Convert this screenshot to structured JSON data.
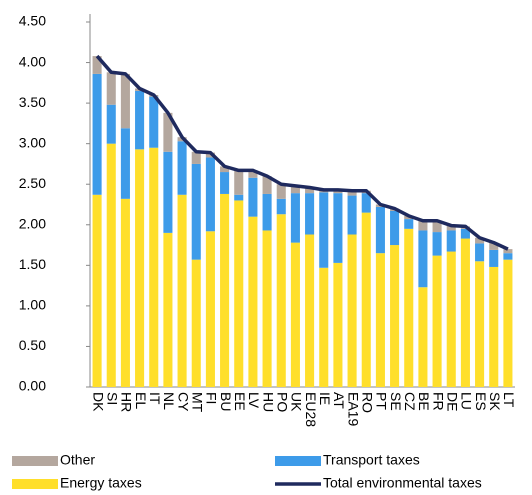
{
  "chart_data": {
    "type": "bar",
    "stacked": true,
    "categories": [
      "DK",
      "SI",
      "HR",
      "EL",
      "IT",
      "NL",
      "CY",
      "MT",
      "FI",
      "BU",
      "EE",
      "LV",
      "HU",
      "PO",
      "UK",
      "EU28",
      "IE",
      "AT",
      "EA19",
      "RO",
      "PT",
      "SE",
      "CZ",
      "BE",
      "FR",
      "DE",
      "LU",
      "ES",
      "SK",
      "LT"
    ],
    "series": [
      {
        "name": "Energy taxes",
        "color": "#ffdf2b",
        "type": "bar",
        "values": [
          2.37,
          3.0,
          2.32,
          2.93,
          2.95,
          1.9,
          2.37,
          1.57,
          1.92,
          2.38,
          2.3,
          2.1,
          1.93,
          2.13,
          1.78,
          1.88,
          1.47,
          1.53,
          1.88,
          2.15,
          1.65,
          1.75,
          1.95,
          1.23,
          1.62,
          1.67,
          1.83,
          1.55,
          1.48,
          1.57
        ]
      },
      {
        "name": "Transport taxes",
        "color": "#3d9be9",
        "type": "bar",
        "values": [
          1.49,
          0.48,
          0.87,
          0.72,
          0.63,
          1.0,
          0.66,
          1.18,
          0.91,
          0.27,
          0.07,
          0.48,
          0.45,
          0.19,
          0.61,
          0.51,
          0.93,
          0.86,
          0.48,
          0.24,
          0.57,
          0.42,
          0.12,
          0.7,
          0.29,
          0.26,
          0.12,
          0.22,
          0.21,
          0.08
        ]
      },
      {
        "name": "Other",
        "color": "#b4a79e",
        "type": "bar",
        "values": [
          0.22,
          0.4,
          0.67,
          0.03,
          0.02,
          0.48,
          0.05,
          0.15,
          0.06,
          0.07,
          0.3,
          0.09,
          0.22,
          0.18,
          0.09,
          0.07,
          0.03,
          0.04,
          0.06,
          0.03,
          0.03,
          0.03,
          0.04,
          0.12,
          0.14,
          0.06,
          0.03,
          0.07,
          0.09,
          0.05
        ]
      },
      {
        "name": "Total environmental taxes",
        "color": "#1f2a5e",
        "type": "line",
        "values": [
          4.08,
          3.88,
          3.86,
          3.68,
          3.6,
          3.38,
          3.08,
          2.9,
          2.89,
          2.72,
          2.67,
          2.67,
          2.6,
          2.5,
          2.48,
          2.46,
          2.43,
          2.43,
          2.42,
          2.42,
          2.25,
          2.2,
          2.11,
          2.05,
          2.05,
          1.99,
          1.98,
          1.84,
          1.78,
          1.7
        ]
      }
    ],
    "ylim": [
      0,
      4.5
    ],
    "yticks": [
      {
        "value": 0,
        "label": "0.00"
      },
      {
        "value": 0.5,
        "label": "0.50"
      },
      {
        "value": 1,
        "label": "1.00"
      },
      {
        "value": 1.5,
        "label": "1.50"
      },
      {
        "value": 2,
        "label": "2.00"
      },
      {
        "value": 2.5,
        "label": "2.50"
      },
      {
        "value": 3,
        "label": "3.00"
      },
      {
        "value": 3.5,
        "label": "3.50"
      },
      {
        "value": 4,
        "label": "4.00"
      },
      {
        "value": 4.5,
        "label": "4.50"
      }
    ],
    "grid": false
  }
}
